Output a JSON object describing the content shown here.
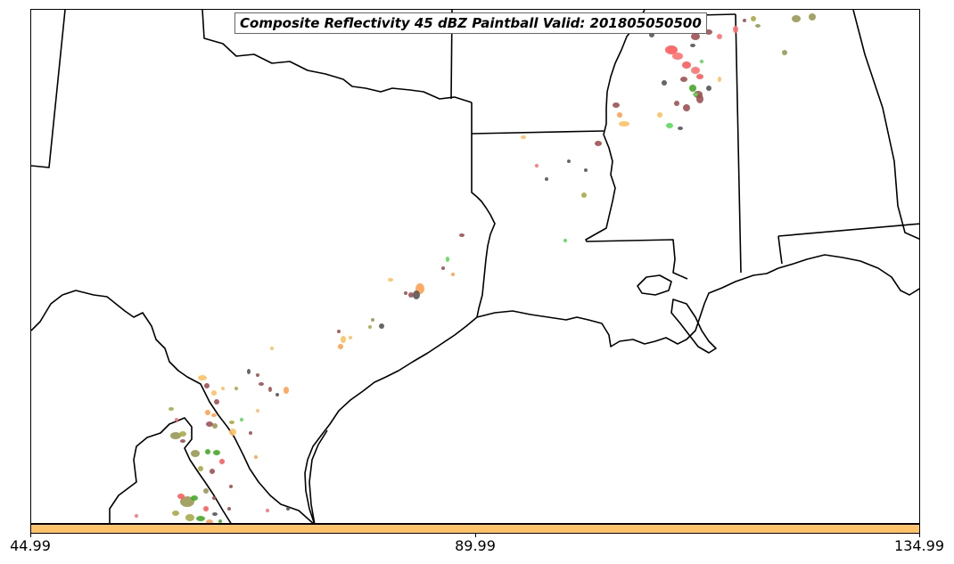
{
  "title": "Composite Reflectivity 45 dBZ Paintball Valid: 201805050500",
  "colorbar": {
    "color": "#FFC266",
    "ticks": [
      "44.99",
      "89.99",
      "134.99"
    ]
  },
  "paint_colors": {
    "red": "#FF5A5A",
    "light_red": "#FF7070",
    "orange": "#FFA050",
    "light_orange": "#FFC060",
    "green": "#55DD55",
    "dark_green": "#44AA22",
    "olive": "#999955",
    "khaki": "#AAAA44",
    "brown": "#A05050",
    "gray": "#555555"
  }
}
